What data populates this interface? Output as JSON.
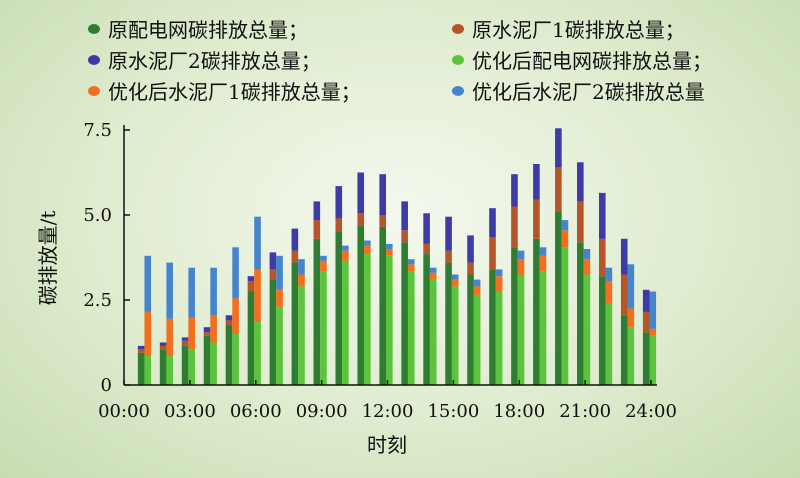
{
  "chart_data": {
    "type": "bar",
    "title": "",
    "xlabel": "时刻",
    "ylabel": "碳排放量/t",
    "ylim": [
      0,
      7.5
    ],
    "xlim": [
      0,
      24
    ],
    "x_ticks": [
      "00:00",
      "03:00",
      "06:00",
      "09:00",
      "12:00",
      "15:00",
      "18:00",
      "21:00",
      "24:00"
    ],
    "y_ticks": [
      "0",
      "2.5",
      "5.0",
      "7.5"
    ],
    "grid": false,
    "legend_position": "top",
    "colors": {
      "orig_grid": "#2e7d32",
      "orig_cement1": "#b5552a",
      "orig_cement2": "#3e3aa6",
      "opt_grid": "#5cc43c",
      "opt_cement1": "#f26f1e",
      "opt_cement2": "#4684cc"
    },
    "legend": [
      {
        "key": "orig_grid",
        "label": "原配电网碳排放总量；"
      },
      {
        "key": "orig_cement1",
        "label": "原水泥厂1碳排放总量；"
      },
      {
        "key": "orig_cement2",
        "label": "原水泥厂2碳排放总量；"
      },
      {
        "key": "opt_grid",
        "label": "优化后配电网碳排放总量；"
      },
      {
        "key": "opt_cement1",
        "label": "优化后水泥厂1碳排放总量；"
      },
      {
        "key": "opt_cement2",
        "label": "优化后水泥厂2碳排放总量"
      }
    ],
    "hours": [
      1,
      2,
      3,
      4,
      5,
      6,
      7,
      8,
      9,
      10,
      11,
      12,
      13,
      14,
      15,
      16,
      17,
      18,
      19,
      20,
      21,
      22,
      23,
      24
    ],
    "original": {
      "grid": [
        0.95,
        1.05,
        1.15,
        1.45,
        1.75,
        2.75,
        3.1,
        3.6,
        4.3,
        4.5,
        4.7,
        4.65,
        4.2,
        3.85,
        3.6,
        3.25,
        3.4,
        4.05,
        4.3,
        5.1,
        4.2,
        3.2,
        2.05,
        1.55
      ],
      "cement1": [
        0.1,
        0.1,
        0.15,
        0.1,
        0.15,
        0.3,
        0.3,
        0.35,
        0.55,
        0.4,
        0.35,
        0.35,
        0.35,
        0.3,
        0.35,
        0.35,
        0.95,
        1.2,
        1.15,
        1.3,
        1.2,
        1.1,
        1.2,
        0.6
      ],
      "cement2": [
        0.1,
        0.1,
        0.1,
        0.15,
        0.15,
        0.15,
        0.5,
        0.65,
        0.55,
        0.95,
        1.2,
        1.2,
        0.85,
        0.9,
        1.0,
        0.8,
        0.85,
        0.95,
        1.05,
        1.15,
        1.15,
        1.35,
        1.05,
        0.65
      ]
    },
    "optimized": {
      "grid": [
        0.85,
        0.85,
        1.05,
        1.25,
        1.5,
        1.85,
        2.3,
        2.9,
        3.35,
        3.65,
        3.85,
        3.8,
        3.35,
        3.1,
        2.9,
        2.65,
        2.75,
        3.25,
        3.35,
        4.05,
        3.25,
        2.4,
        1.7,
        1.45
      ],
      "cement1": [
        1.3,
        1.1,
        0.95,
        0.8,
        1.05,
        1.55,
        0.5,
        0.35,
        0.3,
        0.3,
        0.25,
        0.2,
        0.2,
        0.2,
        0.2,
        0.25,
        0.45,
        0.45,
        0.45,
        0.5,
        0.45,
        0.65,
        0.55,
        0.2
      ],
      "cement2": [
        1.65,
        1.65,
        1.45,
        1.4,
        1.5,
        1.55,
        1.0,
        0.45,
        0.15,
        0.15,
        0.15,
        0.15,
        0.15,
        0.15,
        0.15,
        0.2,
        0.2,
        0.25,
        0.25,
        0.3,
        0.3,
        0.4,
        1.3,
        1.1
      ]
    }
  }
}
